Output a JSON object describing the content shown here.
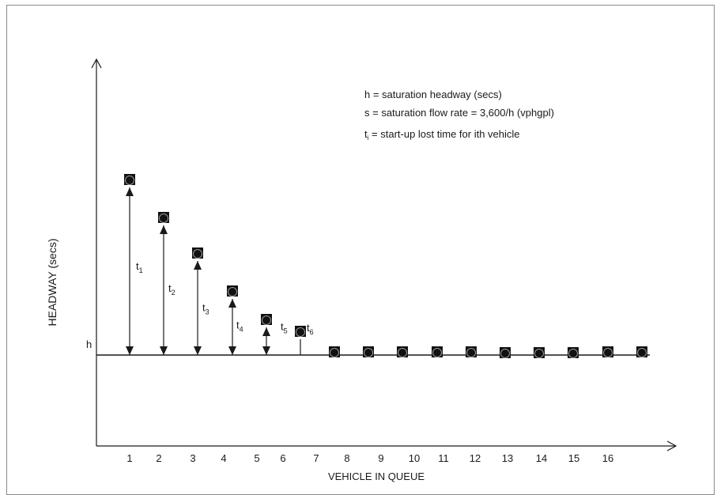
{
  "chart_data": {
    "type": "scatter",
    "title": "",
    "xlabel": "VEHICLE IN QUEUE",
    "ylabel": "HEADWAY (secs)",
    "h_label": "h",
    "x_tick_labels": [
      "1",
      "2",
      "3",
      "4",
      "5",
      "6",
      "7",
      "8",
      "9",
      "10",
      "11",
      "12",
      "13",
      "14",
      "15",
      "16"
    ],
    "legend_lines": [
      {
        "text": "h = saturation headway (secs)"
      },
      {
        "text": "s = saturation flow rate = 3,600/h (vphgpl)"
      },
      {
        "prefix": "t",
        "sub": "i",
        "text": " = start-up lost time for ith vehicle"
      }
    ],
    "lost_time_labels": [
      {
        "base": "t",
        "sub": "1"
      },
      {
        "base": "t",
        "sub": "2"
      },
      {
        "base": "t",
        "sub": "3"
      },
      {
        "base": "t",
        "sub": "4"
      },
      {
        "base": "t",
        "sub": "5"
      },
      {
        "base": "t",
        "sub": "6"
      }
    ],
    "points_description": "Vehicles 1–6 have headway above h (decreasing); vehicles 7+ are at h",
    "x": [
      1,
      2,
      3,
      4,
      5,
      6,
      7,
      8,
      9,
      10,
      11,
      12,
      13,
      14,
      15,
      16
    ],
    "y": [
      3.7,
      2.9,
      2.15,
      1.35,
      0.75,
      0.5,
      0.0,
      0.0,
      0.0,
      0.0,
      0.0,
      0.05,
      0.05,
      0.05,
      0.0,
      0.0
    ],
    "y_units": "headway above h (relative, unlabeled axis)",
    "ylim": [
      -1.9,
      6.0
    ],
    "grid": false,
    "legend_position": "top-right"
  }
}
